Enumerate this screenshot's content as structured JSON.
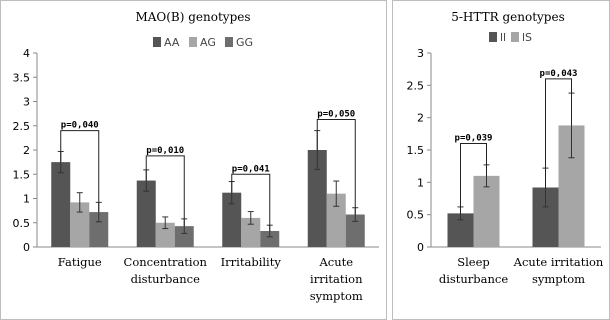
{
  "chart_data": [
    {
      "type": "bar",
      "title": "MAO(B) genotypes",
      "categories": [
        [
          "Fatigue"
        ],
        [
          "Concentration",
          "disturbance"
        ],
        [
          "Irritability"
        ],
        [
          "Acute",
          "irritation",
          "symptom"
        ]
      ],
      "series": [
        {
          "name": "AA",
          "color": "#555555",
          "values": [
            1.75,
            1.37,
            1.12,
            2.0
          ],
          "errors": [
            0.22,
            0.22,
            0.23,
            0.4
          ]
        },
        {
          "name": "AG",
          "color": "#a6a6a6",
          "values": [
            0.92,
            0.5,
            0.6,
            1.1
          ],
          "errors": [
            0.2,
            0.12,
            0.13,
            0.26
          ]
        },
        {
          "name": "GG",
          "color": "#6e6e6e",
          "values": [
            0.72,
            0.43,
            0.33,
            0.67
          ],
          "errors": [
            0.2,
            0.15,
            0.12,
            0.14
          ]
        }
      ],
      "ylim": [
        0,
        4
      ],
      "yticks": [
        "0",
        "0.5",
        "1",
        "1.5",
        "2",
        "2.5",
        "3",
        "3.5",
        "4"
      ],
      "legend": "top",
      "annotations": [
        {
          "category": 0,
          "text": "p=0,040",
          "from": 0,
          "to": 2,
          "level": 2.4
        },
        {
          "category": 1,
          "text": "p=0,010",
          "from": 0,
          "to": 2,
          "level": 1.88
        },
        {
          "category": 2,
          "text": "p=0,041",
          "from": 0,
          "to": 2,
          "level": 1.5
        },
        {
          "category": 3,
          "text": "p=0,050",
          "from": 0,
          "to": 2,
          "level": 2.63
        }
      ]
    },
    {
      "type": "bar",
      "title": "5-HTTR genotypes",
      "categories": [
        [
          "Sleep",
          "disturbance"
        ],
        [
          "Acute irritation",
          "symptom"
        ]
      ],
      "series": [
        {
          "name": "ll",
          "color": "#555555",
          "values": [
            0.52,
            0.92
          ],
          "errors": [
            0.1,
            0.3
          ]
        },
        {
          "name": "lS",
          "color": "#a6a6a6",
          "values": [
            1.1,
            1.88
          ],
          "errors": [
            0.17,
            0.5
          ]
        }
      ],
      "ylim": [
        0,
        3
      ],
      "yticks": [
        "0",
        "0.5",
        "1",
        "1.5",
        "2",
        "2.5",
        "3"
      ],
      "legend": "top",
      "annotations": [
        {
          "category": 0,
          "text": "p=0,039",
          "from": 0,
          "to": 1,
          "level": 1.6
        },
        {
          "category": 1,
          "text": "p=0,043",
          "from": 0,
          "to": 1,
          "level": 2.6
        }
      ]
    }
  ]
}
